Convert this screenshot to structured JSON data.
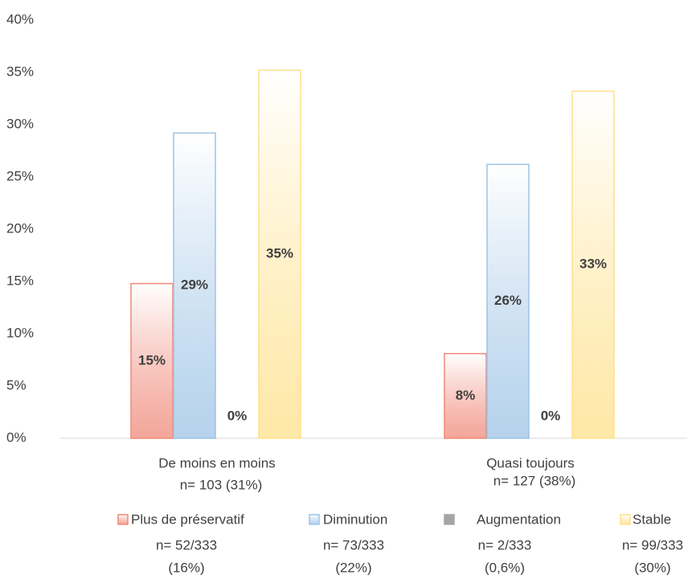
{
  "chart_data": {
    "type": "bar",
    "categories": [
      "De moins en moins",
      "Quasi toujours"
    ],
    "category_counts": [
      "n= 103 (31%)",
      "n= 127 (38%)"
    ],
    "series": [
      {
        "name": "Plus de préservatif",
        "color": "#f08878",
        "values": [
          14.8,
          8.1
        ],
        "value_labels": [
          "15%",
          "8%"
        ],
        "count": "n= 52/333",
        "share": "(16%)"
      },
      {
        "name": "Diminution",
        "color": "#9dc3e6",
        "values": [
          29.2,
          26.2
        ],
        "value_labels": [
          "29%",
          "26%"
        ],
        "count": "n= 73/333",
        "share": "(22%)"
      },
      {
        "name": "Augmentation",
        "color": "#a5a5a5",
        "values": [
          0,
          0
        ],
        "value_labels": [
          "0%",
          "0%"
        ],
        "count": "n= 2/333",
        "share": "(0,6%)"
      },
      {
        "name": "Stable",
        "color": "#ffe08a",
        "values": [
          35.2,
          33.2
        ],
        "value_labels": [
          "35%",
          "33%"
        ],
        "count": "n= 99/333",
        "share": "(30%)"
      }
    ],
    "ylim": [
      0,
      40
    ],
    "yticks": [
      {
        "value": 0,
        "label": "0%"
      },
      {
        "value": 5,
        "label": "5%"
      },
      {
        "value": 10,
        "label": "10%"
      },
      {
        "value": 15,
        "label": "15%"
      },
      {
        "value": 20,
        "label": "20%"
      },
      {
        "value": 25,
        "label": "25%"
      },
      {
        "value": 30,
        "label": "30%"
      },
      {
        "value": 35,
        "label": "35%"
      },
      {
        "value": 40,
        "label": "40%"
      }
    ],
    "grid": false,
    "legend": "bottom"
  }
}
